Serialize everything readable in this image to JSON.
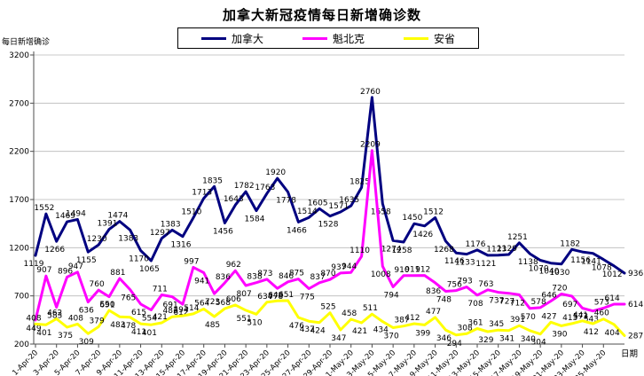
{
  "title": "加拿大新冠疫情每日新增确诊数",
  "y_axis_title": "每日新增确诊",
  "x_axis_title": "日期",
  "legend": [
    {
      "label": "加拿大",
      "color": "#000080"
    },
    {
      "label": "魁北克",
      "color": "#FF00FF"
    },
    {
      "label": "安省",
      "color": "#FFFF00"
    }
  ],
  "chart_data": {
    "type": "line",
    "title": "加拿大新冠疫情每日新增确诊数",
    "xlabel": "日期",
    "ylabel": "每日新增确诊",
    "ylim": [
      200,
      3200
    ],
    "ytick_step": 500,
    "grid": true,
    "legend_position": "top",
    "x_tick_every": 2,
    "x": [
      "1-Apr-20",
      "2-Apr-20",
      "3-Apr-20",
      "4-Apr-20",
      "5-Apr-20",
      "6-Apr-20",
      "7-Apr-20",
      "8-Apr-20",
      "9-Apr-20",
      "10-Apr-20",
      "11-Apr-20",
      "12-Apr-20",
      "13-Apr-20",
      "14-Apr-20",
      "15-Apr-20",
      "16-Apr-20",
      "17-Apr-20",
      "18-Apr-20",
      "19-Apr-20",
      "20-Apr-20",
      "21-Apr-20",
      "22-Apr-20",
      "23-Apr-20",
      "24-Apr-20",
      "25-Apr-20",
      "26-Apr-20",
      "27-Apr-20",
      "28-Apr-20",
      "29-Apr-20",
      "30-Apr-20",
      "1-May-20",
      "2-May-20",
      "3-May-20",
      "4-May-20",
      "5-May-20",
      "6-May-20",
      "7-May-20",
      "8-May-20",
      "9-May-20",
      "10-May-20",
      "11-May-20",
      "12-May-20",
      "13-May-20",
      "14-May-20",
      "15-May-20",
      "16-May-20",
      "17-May-20",
      "18-May-20",
      "19-May-20",
      "20-May-20",
      "21-May-20",
      "22-May-20",
      "23-May-20",
      "24-May-20",
      "25-May-20",
      "26-May-20",
      "27-May-20"
    ],
    "series": [
      {
        "name": "加拿大",
        "color": "#000080",
        "values": [
          1119,
          1552,
          1266,
          1469,
          1494,
          1155,
          1230,
          1391,
          1474,
          1383,
          1170,
          1065,
          1297,
          1383,
          1316,
          1510,
          1713,
          1835,
          1456,
          1643,
          1782,
          1584,
          1763,
          1920,
          1778,
          1466,
          1514,
          1605,
          1528,
          1571,
          1635,
          1825,
          2760,
          1658,
          1274,
          1258,
          1450,
          1426,
          1512,
          1268,
          1146,
          1133,
          1176,
          1121,
          1123,
          1129,
          1251,
          1138,
          1070,
          1040,
          1030,
          1182,
          1156,
          1141,
          1078,
          1012,
          936
        ]
      },
      {
        "name": "魁北克",
        "color": "#FF00FF",
        "values": [
          449,
          907,
          583,
          896,
          947,
          636,
          760,
          691,
          881,
          765,
          615,
          554,
          711,
          691,
          612,
          997,
          941,
          723,
          836,
          962,
          807,
          838,
          873,
          778,
          846,
          875,
          775,
          837,
          870,
          937,
          944,
          1110,
          2209,
          1008,
          794,
          910,
          911,
          912,
          836,
          748,
          756,
          793,
          708,
          763,
          737,
          727,
          712,
          570,
          578,
          646,
          720,
          697,
          573,
          543,
          573,
          614,
          614
        ]
      },
      {
        "name": "安省",
        "color": "#FFFF00",
        "values": [
          408,
          401,
          462,
          375,
          408,
          309,
          379,
          550,
          483,
          478,
          411,
          401,
          421,
          483,
          494,
          514,
          564,
          485,
          568,
          606,
          551,
          510,
          634,
          648,
          651,
          476,
          437,
          424,
          525,
          347,
          458,
          421,
          511,
          434,
          370,
          387,
          412,
          399,
          477,
          346,
          294,
          308,
          361,
          329,
          345,
          341,
          391,
          340,
          304,
          427,
          390,
          413,
          441,
          412,
          460,
          404,
          287
        ]
      }
    ]
  }
}
